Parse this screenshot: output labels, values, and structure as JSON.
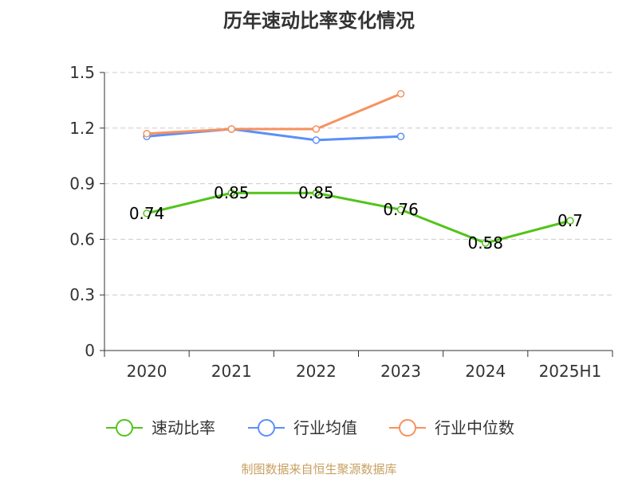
{
  "chart_data": {
    "type": "line",
    "title": "历年速动比率变化情况",
    "categories": [
      "2020",
      "2021",
      "2022",
      "2023",
      "2024",
      "2025H1"
    ],
    "ylim": [
      0,
      1.5
    ],
    "yticks": [
      "0",
      "0.3",
      "0.6",
      "0.9",
      "1.2",
      "1.5"
    ],
    "grid": true,
    "legend_position": "bottom",
    "series": [
      {
        "name": "速动比率",
        "color": "#52c41a",
        "values": [
          0.74,
          0.85,
          0.85,
          0.76,
          0.58,
          0.7
        ],
        "labels": [
          "0.74",
          "0.85",
          "0.85",
          "0.76",
          "0.58",
          "0.7"
        ]
      },
      {
        "name": "行业均值",
        "color": "#5b8ff9",
        "values": [
          1.155,
          1.195,
          1.135,
          1.155,
          null,
          null
        ]
      },
      {
        "name": "行业中位数",
        "color": "#f6925f",
        "values": [
          1.17,
          1.195,
          1.195,
          1.385,
          null,
          null
        ]
      }
    ]
  },
  "footer": "制图数据来自恒生聚源数据库"
}
